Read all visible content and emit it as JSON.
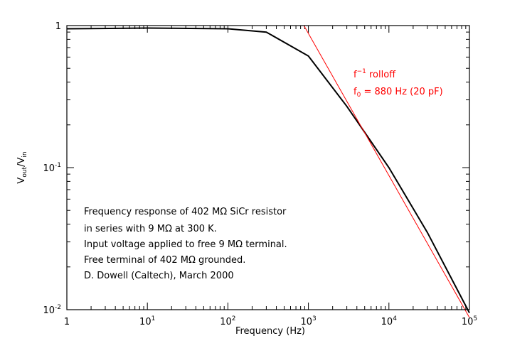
{
  "chart_data": {
    "type": "line",
    "xscale": "log",
    "yscale": "log",
    "xlim": [
      1,
      100000
    ],
    "ylim": [
      0.01,
      1
    ],
    "xlabel": "Frequency (Hz)",
    "ylabel": {
      "base": "V",
      "sub_num": "out",
      "slash": "/V",
      "sub_den": "in"
    },
    "x_ticks": [
      {
        "base": "1",
        "exp": ""
      },
      {
        "base": "10",
        "exp": "1"
      },
      {
        "base": "10",
        "exp": "2"
      },
      {
        "base": "10",
        "exp": "3"
      },
      {
        "base": "10",
        "exp": "4"
      },
      {
        "base": "10",
        "exp": "5"
      }
    ],
    "y_ticks": [
      {
        "base": "1",
        "exp": ""
      },
      {
        "base": "10",
        "exp": "-1"
      },
      {
        "base": "10",
        "exp": "-2"
      }
    ],
    "series": [
      {
        "color": "#000000",
        "x": [
          1,
          10,
          100,
          300,
          1000,
          3000,
          10000,
          30000,
          100000
        ],
        "y": [
          0.95,
          0.96,
          0.95,
          0.9,
          0.61,
          0.27,
          0.1,
          0.035,
          0.0095
        ]
      },
      {
        "color": "#ff0000",
        "x": [
          1,
          880,
          100000
        ],
        "y": [
          1,
          1,
          0.0088
        ]
      }
    ],
    "red_annotation": {
      "line1_base": "f",
      "line1_exp": "−1",
      "line1_rest": " rolloff",
      "line2_base": "f",
      "line2_sub": "0",
      "line2_rest": " = 880 Hz (20 pF)"
    },
    "annotation_lines": [
      "Frequency response of 402 MΩ SiCr resistor",
      "in series with 9 MΩ at 300 K.",
      "Input voltage applied to free 9 MΩ terminal.",
      "Free terminal of 402 MΩ grounded.",
      "D. Dowell (Caltech), March 2000"
    ]
  }
}
